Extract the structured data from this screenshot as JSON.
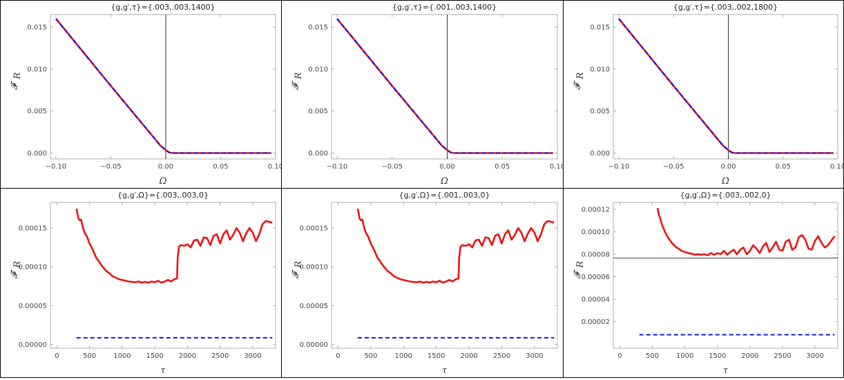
{
  "chart_data": [
    {
      "type": "line",
      "title": "{g,g′,τ}={.003,.003,1400}",
      "xlabel": "Ω",
      "ylabel": "𝓕̇",
      "ylabel_sub": "R",
      "xlim": [
        -0.105,
        0.1
      ],
      "ylim": [
        -0.0007,
        0.0165
      ],
      "xticks": [
        -0.1,
        -0.05,
        0.0,
        0.05,
        0.1
      ],
      "xtick_labels": [
        "−0.10",
        "−0.05",
        "0.00",
        "0.05",
        "0.10"
      ],
      "yticks": [
        0.0,
        0.005,
        0.01,
        0.015
      ],
      "ytick_labels": [
        "0.000",
        "0.005",
        "0.010",
        "0.015"
      ],
      "zero_line": {
        "axis": "x",
        "value": 0
      },
      "series": [
        {
          "color": "#ee1111",
          "dashed": false,
          "x": [
            -0.1,
            -0.05,
            -0.01,
            -0.005,
            0.0,
            0.003,
            0.006,
            0.05,
            0.096
          ],
          "y": [
            0.016,
            0.008,
            0.0017,
            0.0009,
            0.00035,
            8e-05,
            0.0,
            0.0,
            0.0
          ]
        },
        {
          "color": "#1111ee",
          "dashed": true,
          "x": [
            -0.1,
            -0.05,
            -0.01,
            -0.005,
            0.0,
            0.003,
            0.006,
            0.05,
            0.096
          ],
          "y": [
            0.016,
            0.008,
            0.0017,
            0.0009,
            0.00035,
            8e-05,
            0.0,
            0.0,
            0.0
          ]
        }
      ]
    },
    {
      "type": "line",
      "title": "{g,g′,τ}={.001,.003,1400}",
      "xlabel": "Ω",
      "ylabel": "𝓕̇",
      "ylabel_sub": "R",
      "xlim": [
        -0.105,
        0.1
      ],
      "ylim": [
        -0.0007,
        0.0165
      ],
      "xticks": [
        -0.1,
        -0.05,
        0.0,
        0.05,
        0.1
      ],
      "xtick_labels": [
        "−0.10",
        "−0.05",
        "0.00",
        "0.05",
        "0.10"
      ],
      "yticks": [
        0.0,
        0.005,
        0.01,
        0.015
      ],
      "ytick_labels": [
        "0.000",
        "0.005",
        "0.010",
        "0.015"
      ],
      "zero_line": {
        "axis": "x",
        "value": 0
      },
      "series": [
        {
          "color": "#ee1111",
          "dashed": false,
          "x": [
            -0.1,
            -0.05,
            -0.01,
            -0.005,
            0.0,
            0.003,
            0.006,
            0.05,
            0.096
          ],
          "y": [
            0.016,
            0.008,
            0.0017,
            0.0009,
            0.00035,
            8e-05,
            0.0,
            0.0,
            0.0
          ]
        },
        {
          "color": "#1111ee",
          "dashed": true,
          "x": [
            -0.1,
            -0.05,
            -0.01,
            -0.005,
            0.0,
            0.003,
            0.006,
            0.05,
            0.096
          ],
          "y": [
            0.016,
            0.008,
            0.0017,
            0.0009,
            0.00035,
            8e-05,
            0.0,
            0.0,
            0.0
          ]
        }
      ]
    },
    {
      "type": "line",
      "title": "{g,g′,τ}={.003,.002,1800}",
      "xlabel": "Ω",
      "ylabel": "𝓕̇",
      "ylabel_sub": "R",
      "xlim": [
        -0.105,
        0.1
      ],
      "ylim": [
        -0.0007,
        0.0165
      ],
      "xticks": [
        -0.1,
        -0.05,
        0.0,
        0.05,
        0.1
      ],
      "xtick_labels": [
        "−0.10",
        "−0.05",
        "0.00",
        "0.05",
        "0.10"
      ],
      "yticks": [
        0.0,
        0.005,
        0.01,
        0.015
      ],
      "ytick_labels": [
        "0.000",
        "0.005",
        "0.010",
        "0.015"
      ],
      "zero_line": {
        "axis": "x",
        "value": 0
      },
      "series": [
        {
          "color": "#ee1111",
          "dashed": false,
          "x": [
            -0.1,
            -0.05,
            -0.01,
            -0.005,
            0.0,
            0.003,
            0.006,
            0.05,
            0.096
          ],
          "y": [
            0.016,
            0.008,
            0.0017,
            0.0009,
            0.00035,
            8e-05,
            0.0,
            0.0,
            0.0
          ]
        },
        {
          "color": "#1111ee",
          "dashed": true,
          "x": [
            -0.1,
            -0.05,
            -0.01,
            -0.005,
            0.0,
            0.003,
            0.006,
            0.05,
            0.096
          ],
          "y": [
            0.016,
            0.008,
            0.0017,
            0.0009,
            0.00035,
            8e-05,
            0.0,
            0.0,
            0.0
          ]
        }
      ]
    },
    {
      "type": "line",
      "title": "{g,g′,Ω}={.003,.003,0}",
      "xlabel": "τ",
      "ylabel": "𝓕̇",
      "ylabel_sub": "R",
      "xlim": [
        -100,
        3350
      ],
      "ylim": [
        -5e-06,
        0.000183
      ],
      "xticks": [
        0,
        500,
        1000,
        1500,
        2000,
        2500,
        3000
      ],
      "xtick_labels": [
        "0",
        "500",
        "1000",
        "1500",
        "2000",
        "2500",
        "3000"
      ],
      "yticks": [
        0.0,
        5e-05,
        0.0001,
        0.00015
      ],
      "ytick_labels": [
        "0.00000",
        "0.00005",
        "0.00010",
        "0.00015"
      ],
      "series": [
        {
          "color": "#ee1111",
          "dashed": false,
          "x": [
            300,
            330,
            350,
            370,
            400,
            430,
            460,
            500,
            550,
            600,
            650,
            700,
            750,
            800,
            850,
            900,
            950,
            1000,
            1050,
            1100,
            1150,
            1200,
            1250,
            1300,
            1350,
            1400,
            1450,
            1500,
            1550,
            1600,
            1650,
            1700,
            1750,
            1800,
            1840,
            1850,
            1870,
            1900,
            1950,
            2000,
            2050,
            2100,
            2150,
            2200,
            2250,
            2300,
            2350,
            2400,
            2450,
            2500,
            2550,
            2600,
            2650,
            2700,
            2750,
            2800,
            2850,
            2900,
            2950,
            3000,
            3050,
            3100,
            3150,
            3200,
            3250,
            3300
          ],
          "y": [
            0.000175,
            0.000162,
            0.00016,
            0.000161,
            0.00015,
            0.000143,
            0.000139,
            0.00013,
            0.000122,
            0.000112,
            0.000106,
            0.0001,
            9.5e-05,
            9.2e-05,
            8.8e-05,
            8.6e-05,
            8.4e-05,
            8.3e-05,
            8.2e-05,
            8.1e-05,
            8.05e-05,
            8e-05,
            8.1e-05,
            7.95e-05,
            8.05e-05,
            7.95e-05,
            8.1e-05,
            8e-05,
            8.2e-05,
            7.95e-05,
            8.1e-05,
            8.3e-05,
            8.1e-05,
            8.4e-05,
            8.5e-05,
            0.000112,
            0.000126,
            0.000128,
            0.000127,
            0.000129,
            0.000125,
            0.000134,
            0.000135,
            0.000127,
            0.000138,
            0.000137,
            0.000128,
            0.00014,
            0.000142,
            0.00013,
            0.000142,
            0.000147,
            0.000135,
            0.000141,
            0.00015,
            0.000144,
            0.000133,
            0.000143,
            0.00015,
            0.000144,
            0.000133,
            0.000142,
            0.000155,
            0.000159,
            0.000158,
            0.000157
          ]
        },
        {
          "color": "#1111ee",
          "dashed": true,
          "x": [
            300,
            3300
          ],
          "y": [
            8.5e-06,
            8.5e-06
          ]
        }
      ]
    },
    {
      "type": "line",
      "title": "{g,g′,Ω}={.001,.003,0}",
      "xlabel": "τ",
      "ylabel": "𝓕̇",
      "ylabel_sub": "R",
      "xlim": [
        -100,
        3350
      ],
      "ylim": [
        -5e-06,
        0.000183
      ],
      "xticks": [
        0,
        500,
        1000,
        1500,
        2000,
        2500,
        3000
      ],
      "xtick_labels": [
        "0",
        "500",
        "1000",
        "1500",
        "2000",
        "2500",
        "3000"
      ],
      "yticks": [
        0.0,
        5e-05,
        0.0001,
        0.00015
      ],
      "ytick_labels": [
        "0.00000",
        "0.00005",
        "0.00010",
        "0.00015"
      ],
      "series": [
        {
          "color": "#ee1111",
          "dashed": false,
          "x": [
            300,
            330,
            350,
            370,
            400,
            430,
            460,
            500,
            550,
            600,
            650,
            700,
            750,
            800,
            850,
            900,
            950,
            1000,
            1050,
            1100,
            1150,
            1200,
            1250,
            1300,
            1350,
            1400,
            1450,
            1500,
            1550,
            1600,
            1650,
            1700,
            1750,
            1800,
            1840,
            1850,
            1870,
            1900,
            1950,
            2000,
            2050,
            2100,
            2150,
            2200,
            2250,
            2300,
            2350,
            2400,
            2450,
            2500,
            2550,
            2600,
            2650,
            2700,
            2750,
            2800,
            2850,
            2900,
            2950,
            3000,
            3050,
            3100,
            3150,
            3200,
            3250,
            3300
          ],
          "y": [
            0.000175,
            0.000162,
            0.00016,
            0.000161,
            0.00015,
            0.000143,
            0.000139,
            0.00013,
            0.000122,
            0.000112,
            0.000106,
            0.0001,
            9.5e-05,
            9.2e-05,
            8.8e-05,
            8.6e-05,
            8.4e-05,
            8.3e-05,
            8.2e-05,
            8.1e-05,
            8.05e-05,
            8e-05,
            8.1e-05,
            7.95e-05,
            8.05e-05,
            7.95e-05,
            8.1e-05,
            8e-05,
            8.2e-05,
            7.95e-05,
            8.1e-05,
            8.3e-05,
            8.1e-05,
            8.4e-05,
            8.5e-05,
            0.000112,
            0.000126,
            0.000128,
            0.000127,
            0.000129,
            0.000125,
            0.000134,
            0.000135,
            0.000127,
            0.000138,
            0.000137,
            0.000128,
            0.00014,
            0.000142,
            0.00013,
            0.000142,
            0.000147,
            0.000135,
            0.000141,
            0.00015,
            0.000144,
            0.000133,
            0.000143,
            0.00015,
            0.000144,
            0.000133,
            0.000142,
            0.000155,
            0.000159,
            0.000158,
            0.000157
          ]
        },
        {
          "color": "#1111ee",
          "dashed": true,
          "x": [
            300,
            3300
          ],
          "y": [
            8.5e-06,
            8.5e-06
          ]
        }
      ]
    },
    {
      "type": "line",
      "title": "{g,g′,Ω}={.003,.002,0}",
      "xlabel": "τ",
      "ylabel": "𝓕̇",
      "ylabel_sub": "R",
      "xlim": [
        -100,
        3350
      ],
      "ylim": [
        -3.5e-06,
        0.000126
      ],
      "xticks": [
        0,
        500,
        1000,
        1500,
        2000,
        2500,
        3000
      ],
      "xtick_labels": [
        "0",
        "500",
        "1000",
        "1500",
        "2000",
        "2500",
        "3000"
      ],
      "yticks": [
        2e-05,
        4e-05,
        6e-05,
        8e-05,
        0.0001,
        0.00012
      ],
      "ytick_labels": [
        "0.00002",
        "0.00004",
        "0.00006",
        "0.00008",
        "0.00010",
        "0.00012"
      ],
      "reference_line": {
        "axis": "y",
        "value": 7.65e-05
      },
      "series": [
        {
          "color": "#ee1111",
          "dashed": false,
          "x": [
            580,
            600,
            620,
            650,
            700,
            750,
            800,
            850,
            900,
            950,
            1000,
            1050,
            1100,
            1150,
            1200,
            1250,
            1300,
            1350,
            1400,
            1450,
            1500,
            1550,
            1600,
            1650,
            1700,
            1750,
            1800,
            1850,
            1900,
            1950,
            2000,
            2050,
            2100,
            2150,
            2200,
            2250,
            2300,
            2350,
            2400,
            2450,
            2500,
            2550,
            2600,
            2650,
            2700,
            2750,
            2800,
            2850,
            2900,
            2950,
            3000,
            3050,
            3100,
            3150,
            3200,
            3250,
            3300
          ],
          "y": [
            0.000121,
            0.000115,
            0.000112,
            0.000106,
            9.9e-05,
            9.4e-05,
            9e-05,
            8.7e-05,
            8.5e-05,
            8.3e-05,
            8.2e-05,
            8.1e-05,
            8.05e-05,
            7.95e-05,
            8e-05,
            7.95e-05,
            8e-05,
            7.9e-05,
            8.1e-05,
            7.95e-05,
            8.1e-05,
            8e-05,
            8.3e-05,
            7.95e-05,
            8.2e-05,
            8.4e-05,
            8e-05,
            8.4e-05,
            8.6e-05,
            8e-05,
            8.3e-05,
            8.8e-05,
            8.5e-05,
            8.1e-05,
            8.7e-05,
            9e-05,
            8.2e-05,
            8.6e-05,
            9.1e-05,
            8.4e-05,
            8.3e-05,
            9.1e-05,
            9.3e-05,
            8.4e-05,
            8.6e-05,
            9.5e-05,
            9.7e-05,
            9.3e-05,
            8.5e-05,
            8.4e-05,
            9.2e-05,
            9.6e-05,
            9e-05,
            8.6e-05,
            8.8e-05,
            9.2e-05,
            9.6e-05
          ]
        },
        {
          "color": "#1111ee",
          "dashed": true,
          "x": [
            300,
            3300
          ],
          "y": [
            8.5e-06,
            8.5e-06
          ]
        }
      ]
    }
  ]
}
